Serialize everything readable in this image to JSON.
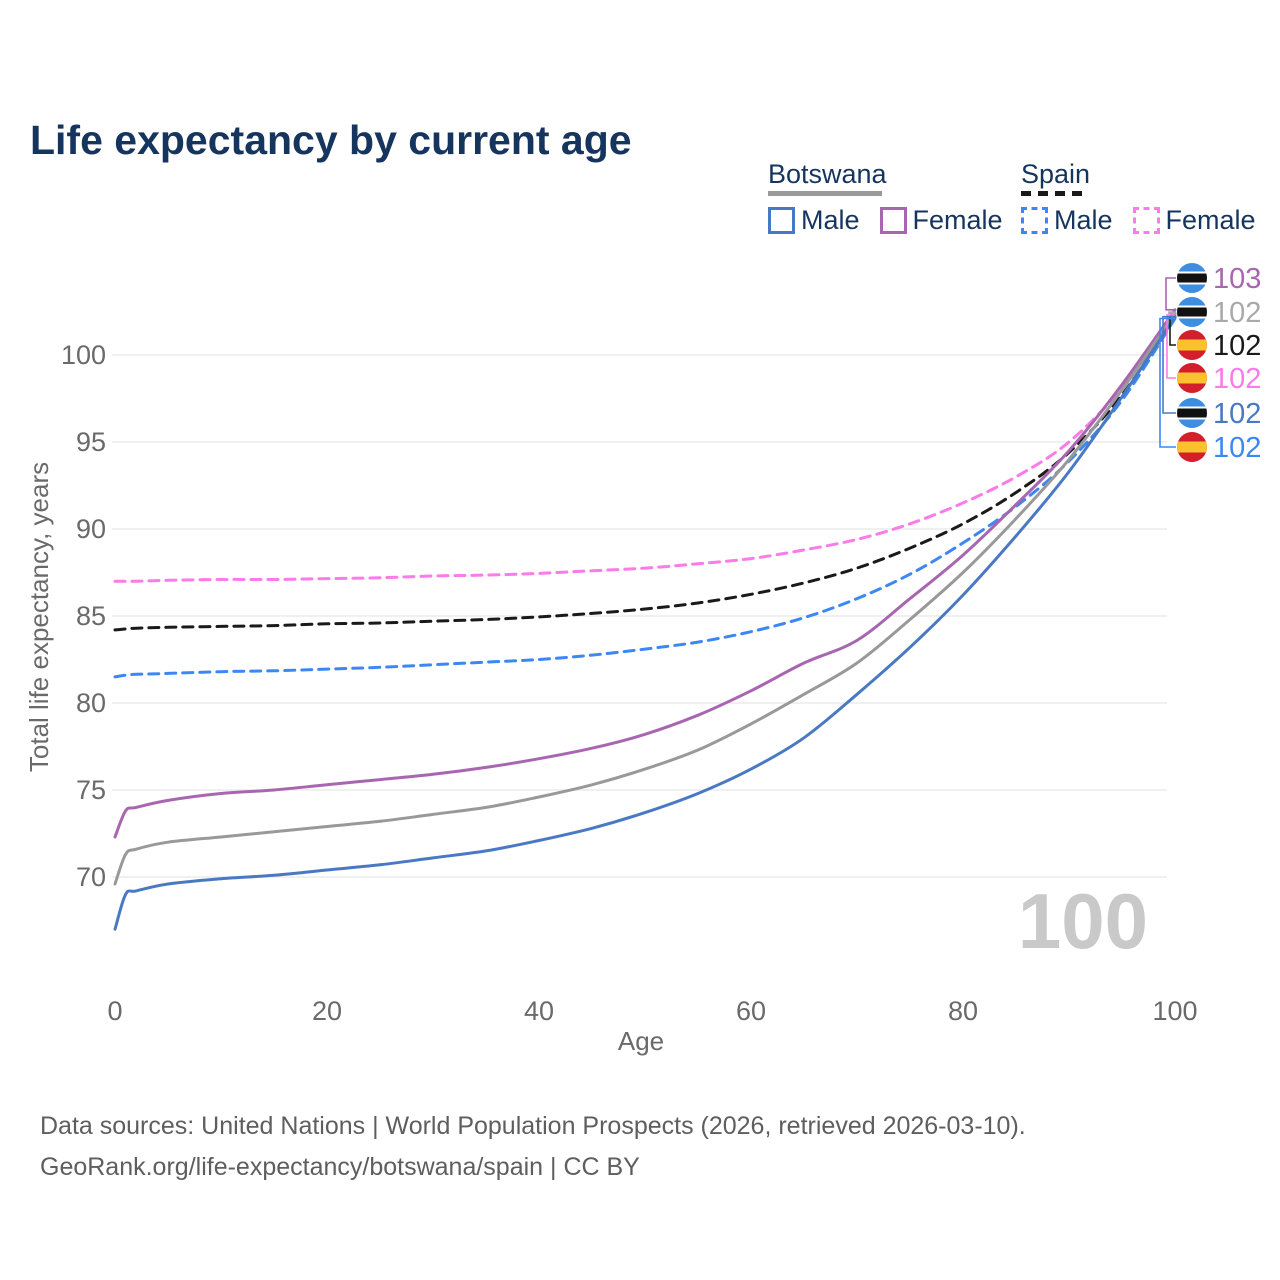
{
  "title": "Life expectancy by current age",
  "legend": {
    "groups": [
      {
        "country": "Botswana",
        "underline_style": "solid",
        "underline_color": "#999999",
        "underline_width": 114,
        "items": [
          {
            "label": "Male",
            "color": "#4a79c4",
            "dashed": false
          },
          {
            "label": "Female",
            "color": "#a866b0",
            "dashed": false
          }
        ]
      },
      {
        "country": "Spain",
        "underline_style": "dashed",
        "underline_color": "#1a1a1a",
        "underline_width": 62,
        "items": [
          {
            "label": "Male",
            "color": "#3d87f5",
            "dashed": true
          },
          {
            "label": "Female",
            "color": "#fb7be8",
            "dashed": true
          }
        ]
      }
    ]
  },
  "chart_data": {
    "type": "line",
    "title": "Life expectancy by current age",
    "xlabel": "Age",
    "ylabel": "Total life expectancy, years",
    "x_ticks": [
      0,
      20,
      40,
      60,
      80,
      100
    ],
    "y_ticks": [
      100,
      95,
      90,
      85,
      80,
      75,
      70
    ],
    "xlim": [
      0,
      100
    ],
    "ylim": [
      66,
      103.5
    ],
    "grid": "horizontal",
    "legend_position": "top-right",
    "watermark": "100",
    "ages": [
      0,
      1,
      2,
      5,
      10,
      15,
      20,
      25,
      30,
      35,
      40,
      45,
      50,
      55,
      60,
      65,
      70,
      75,
      80,
      85,
      90,
      95,
      100
    ],
    "series": [
      {
        "id": "es_female",
        "name": "Spain Female",
        "country": "Spain",
        "sex": "Female",
        "color": "#fb7be8",
        "dashed": true,
        "values": [
          87.0,
          87.0,
          87.0,
          87.05,
          87.1,
          87.1,
          87.15,
          87.2,
          87.3,
          87.35,
          87.45,
          87.6,
          87.75,
          88.0,
          88.3,
          88.8,
          89.4,
          90.3,
          91.5,
          93.0,
          95.0,
          98.1,
          102.3
        ],
        "end_value": 102
      },
      {
        "id": "es_all",
        "name": "Spain",
        "country": "Spain",
        "sex": "All",
        "color": "#1a1a1a",
        "dashed": true,
        "values": [
          84.2,
          84.25,
          84.3,
          84.35,
          84.4,
          84.45,
          84.55,
          84.6,
          84.7,
          84.8,
          84.95,
          85.15,
          85.4,
          85.75,
          86.25,
          86.9,
          87.75,
          88.9,
          90.3,
          92.1,
          94.4,
          97.7,
          102.2
        ],
        "end_value": 102
      },
      {
        "id": "es_male",
        "name": "Spain Male",
        "country": "Spain",
        "sex": "Male",
        "color": "#3d87f5",
        "dashed": true,
        "values": [
          81.5,
          81.6,
          81.65,
          81.7,
          81.8,
          81.85,
          81.95,
          82.05,
          82.2,
          82.35,
          82.5,
          82.75,
          83.1,
          83.5,
          84.1,
          84.9,
          86.0,
          87.4,
          89.2,
          91.3,
          93.9,
          97.4,
          102.1
        ],
        "end_value": 102
      },
      {
        "id": "bw_female",
        "name": "Botswana Female",
        "country": "Botswana",
        "sex": "Female",
        "color": "#a866b0",
        "dashed": false,
        "values": [
          72.3,
          73.8,
          74.0,
          74.4,
          74.8,
          75.0,
          75.3,
          75.6,
          75.9,
          76.3,
          76.8,
          77.4,
          78.2,
          79.3,
          80.7,
          82.3,
          83.6,
          86.0,
          88.5,
          91.4,
          94.5,
          98.3,
          102.6
        ],
        "end_value": 103
      },
      {
        "id": "bw_all",
        "name": "Botswana",
        "country": "Botswana",
        "sex": "All",
        "color": "#999999",
        "dashed": false,
        "values": [
          69.6,
          71.3,
          71.6,
          72.0,
          72.3,
          72.6,
          72.9,
          73.2,
          73.6,
          74.0,
          74.6,
          75.3,
          76.2,
          77.3,
          78.8,
          80.5,
          82.3,
          84.8,
          87.5,
          90.6,
          94.0,
          98.0,
          102.4
        ],
        "end_value": 102
      },
      {
        "id": "bw_male",
        "name": "Botswana Male",
        "country": "Botswana",
        "sex": "Male",
        "color": "#4a79c4",
        "dashed": false,
        "values": [
          67.0,
          69.0,
          69.2,
          69.6,
          69.9,
          70.1,
          70.4,
          70.7,
          71.1,
          71.5,
          72.1,
          72.8,
          73.7,
          74.8,
          76.2,
          78.0,
          80.5,
          83.2,
          86.2,
          89.6,
          93.3,
          97.6,
          102.2
        ],
        "end_value": 102
      }
    ]
  },
  "right_labels": [
    {
      "series_id": "bw_female",
      "flag": "botswana",
      "value": "103",
      "color": "#a866b0"
    },
    {
      "series_id": "bw_all",
      "flag": "botswana",
      "value": "102",
      "color": "#a9a9a9"
    },
    {
      "series_id": "es_all",
      "flag": "spain",
      "value": "102",
      "color": "#1a1a1a"
    },
    {
      "series_id": "es_female",
      "flag": "spain",
      "value": "102",
      "color": "#fb7be8"
    },
    {
      "series_id": "bw_male",
      "flag": "botswana",
      "value": "102",
      "color": "#4a79c4"
    },
    {
      "series_id": "es_male",
      "flag": "spain",
      "value": "102",
      "color": "#3d87f5"
    }
  ],
  "flag_colors": {
    "botswana": {
      "field": "#3d8ee0",
      "band": "#111111",
      "band_edge": "#ffffff"
    },
    "spain": {
      "field": "#d21f2b",
      "band": "#fbc22d"
    }
  },
  "style_colors": {
    "title": "#16355e",
    "axis_text": "#6a6a6a",
    "gridline": "#ececec",
    "watermark": "#c9c9c9",
    "footer": "#5e5e5e"
  },
  "footer": {
    "line1": "Data sources: United Nations | World Population Prospects (2026, retrieved 2026-03-10).",
    "line2": "GeoRank.org/life-expectancy/botswana/spain | CC BY"
  }
}
